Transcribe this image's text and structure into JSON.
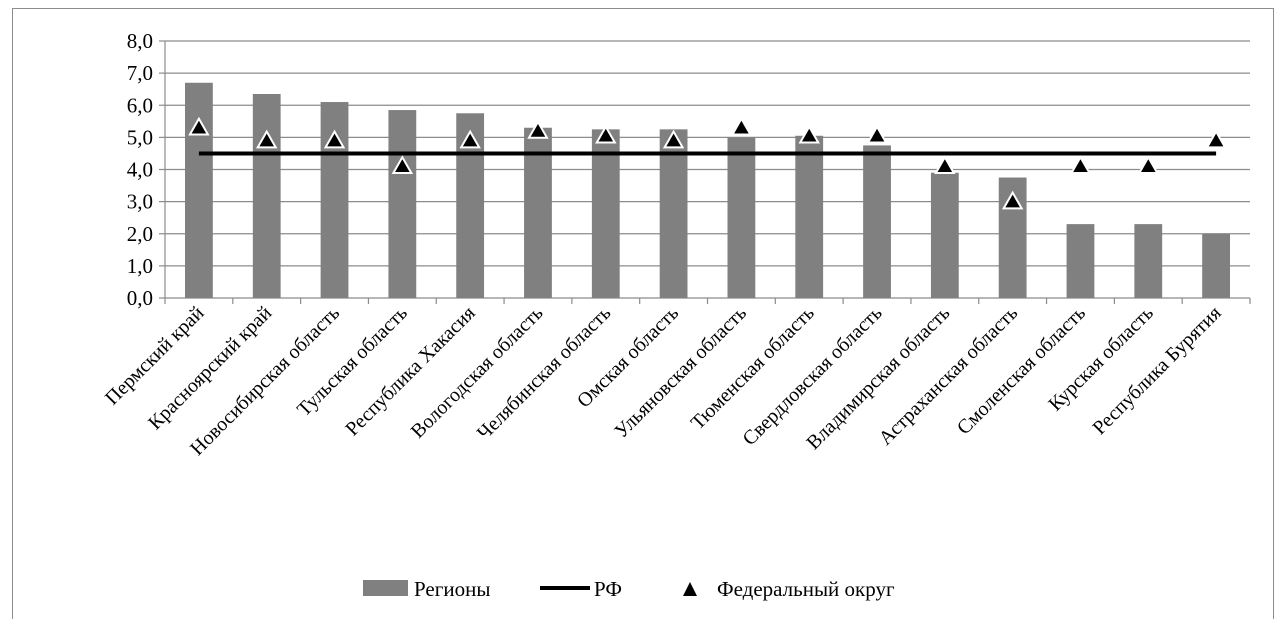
{
  "chart_data": {
    "type": "bar",
    "title": "",
    "xlabel": "",
    "ylabel": "",
    "ylim": [
      0,
      8
    ],
    "yticks": [
      "0,0",
      "1,0",
      "2,0",
      "3,0",
      "4,0",
      "5,0",
      "6,0",
      "7,0",
      "8,0"
    ],
    "grid": true,
    "legend_position": "bottom",
    "categories": [
      "Пермский край",
      "Красноярский край",
      "Новосибирская область",
      "Тульская область",
      "Республика Хакасия",
      "Вологодская область",
      "Челябинская область",
      "Омская область",
      "Ульяновская область",
      "Тюменская область",
      "Свердловская область",
      "Владимирская область",
      "Астраханская область",
      "Смоленская область",
      "Курская область",
      "Республика Бурятия"
    ],
    "series": [
      {
        "name": "Регионы",
        "kind": "bar",
        "color": "#808080",
        "values": [
          6.7,
          6.35,
          6.1,
          5.85,
          5.75,
          5.3,
          5.25,
          5.25,
          5.0,
          5.05,
          4.75,
          3.9,
          3.75,
          2.3,
          2.3,
          2.0
        ]
      },
      {
        "name": "РФ",
        "kind": "line",
        "color": "#000000",
        "values": [
          4.5,
          4.5,
          4.5,
          4.5,
          4.5,
          4.5,
          4.5,
          4.5,
          4.5,
          4.5,
          4.5,
          4.5,
          4.5,
          4.5,
          4.5,
          4.5
        ]
      },
      {
        "name": "Федеральный округ",
        "kind": "marker",
        "color": "#000000",
        "values": [
          5.3,
          4.9,
          4.9,
          4.1,
          4.9,
          5.2,
          5.05,
          4.9,
          5.3,
          5.05,
          5.05,
          4.1,
          3.0,
          4.1,
          4.1,
          4.9
        ]
      }
    ]
  }
}
